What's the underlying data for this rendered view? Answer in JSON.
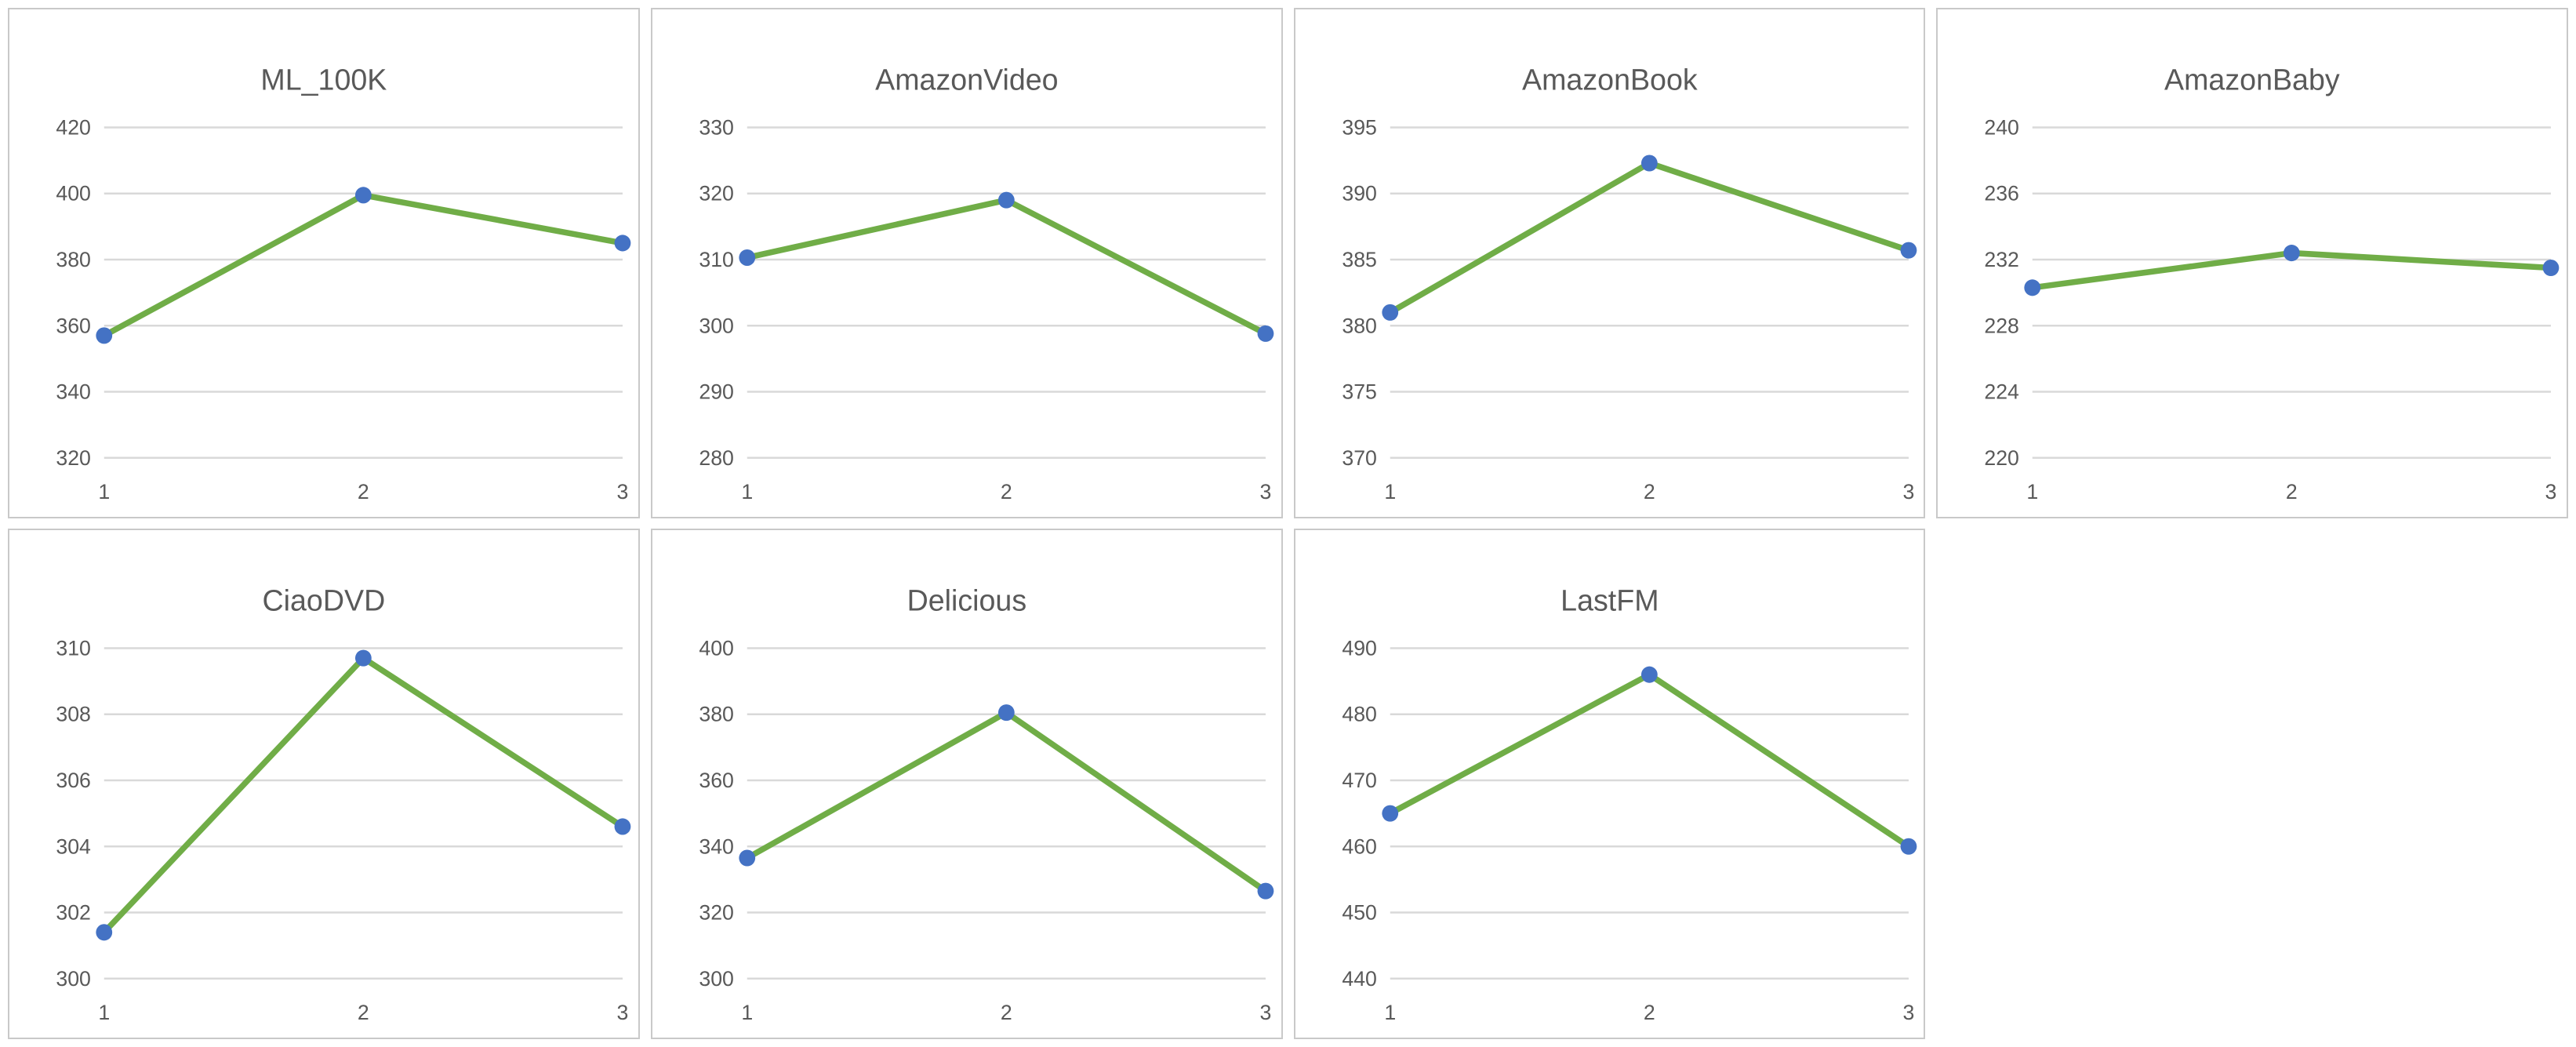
{
  "styles": {
    "line_color": "#70AD47",
    "marker_color": "#4472C4",
    "grid_color": "#D9D9D9",
    "panel_border_color": "#C9C9C9",
    "title_color": "#595959",
    "tick_color": "#595959",
    "background_color": "#FFFFFF"
  },
  "charts_grid": {
    "rows": 2,
    "cols": 4,
    "filled_cells": 7,
    "empty_cells": 1
  },
  "chart_data": [
    {
      "type": "line",
      "title": "ML_100K",
      "x": [
        "1",
        "2",
        "3"
      ],
      "values": [
        357,
        399.5,
        385
      ],
      "ylim": [
        320,
        420
      ],
      "yticks": [
        320,
        340,
        360,
        380,
        400,
        420
      ],
      "grid": true,
      "legend": "none",
      "marker": "circle"
    },
    {
      "type": "line",
      "title": "AmazonVideo",
      "x": [
        "1",
        "2",
        "3"
      ],
      "values": [
        310.3,
        319,
        298.8
      ],
      "ylim": [
        280,
        330
      ],
      "yticks": [
        280,
        290,
        300,
        310,
        320,
        330
      ],
      "grid": true,
      "legend": "none",
      "marker": "circle"
    },
    {
      "type": "line",
      "title": "AmazonBook",
      "x": [
        "1",
        "2",
        "3"
      ],
      "values": [
        381,
        392.3,
        385.7
      ],
      "ylim": [
        370,
        395
      ],
      "yticks": [
        370,
        375,
        380,
        385,
        390,
        395
      ],
      "grid": true,
      "legend": "none",
      "marker": "circle"
    },
    {
      "type": "line",
      "title": "AmazonBaby",
      "x": [
        "1",
        "2",
        "3"
      ],
      "values": [
        230.3,
        232.4,
        231.5
      ],
      "ylim": [
        220,
        240
      ],
      "yticks": [
        220,
        224,
        228,
        232,
        236,
        240
      ],
      "grid": true,
      "legend": "none",
      "marker": "circle"
    },
    {
      "type": "line",
      "title": "CiaoDVD",
      "x": [
        "1",
        "2",
        "3"
      ],
      "values": [
        301.4,
        309.7,
        304.6
      ],
      "ylim": [
        300,
        310
      ],
      "yticks": [
        300,
        302,
        304,
        306,
        308,
        310
      ],
      "grid": true,
      "legend": "none",
      "marker": "circle"
    },
    {
      "type": "line",
      "title": "Delicious",
      "x": [
        "1",
        "2",
        "3"
      ],
      "values": [
        336.5,
        380.5,
        326.5
      ],
      "ylim": [
        300,
        400
      ],
      "yticks": [
        300,
        320,
        340,
        360,
        380,
        400
      ],
      "grid": true,
      "legend": "none",
      "marker": "circle"
    },
    {
      "type": "line",
      "title": "LastFM",
      "x": [
        "1",
        "2",
        "3"
      ],
      "values": [
        465,
        486,
        460
      ],
      "ylim": [
        440,
        490
      ],
      "yticks": [
        440,
        450,
        460,
        470,
        480,
        490
      ],
      "grid": true,
      "legend": "none",
      "marker": "circle"
    }
  ]
}
